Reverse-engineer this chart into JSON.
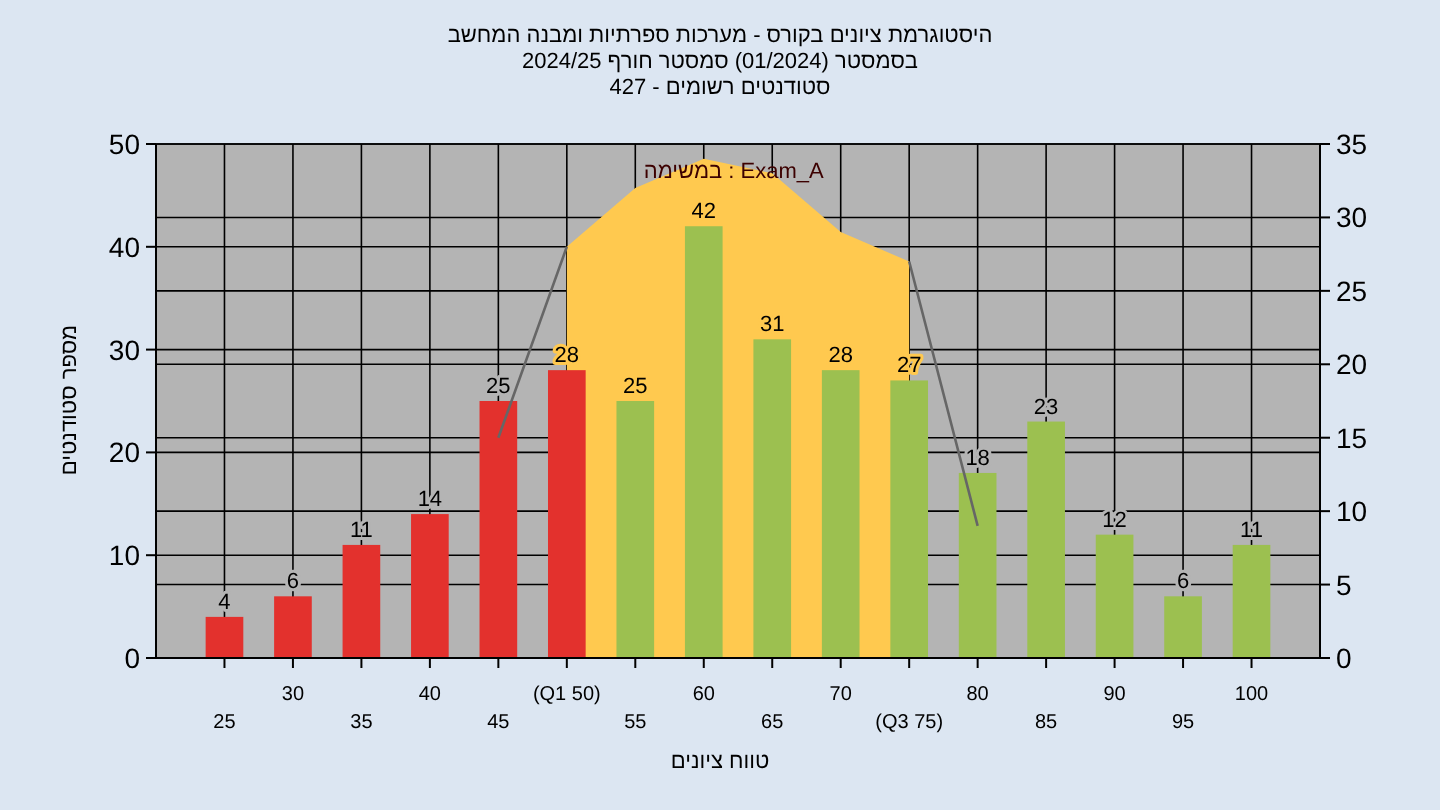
{
  "chart_data": {
    "type": "bar",
    "title": "היסטוגרמת ציונים בקורס - מערכות ספרתיות ומבנה המחשב",
    "subtitle": "בסמסטר  (01/2024)  סמסטר חורף 2024/25",
    "xlabel": "טווח ציונים",
    "ylabel": "מספר סטודנטים",
    "annotations": [
      "סטודנטים רשומים - 427",
      "במשימה : Exam_A"
    ],
    "categories": [
      "25",
      "30",
      "35",
      "40",
      "45",
      "(Q1 50)",
      "55",
      "60",
      "65",
      "70",
      "(Q3 75)",
      "80",
      "85",
      "90",
      "95",
      "100"
    ],
    "ylim": [
      0,
      50
    ],
    "yticks": [
      0,
      10,
      20,
      30,
      40,
      50
    ],
    "y2lim": [
      0,
      35
    ],
    "y2ticks": [
      0,
      5,
      10,
      15,
      20,
      25,
      30,
      35
    ],
    "grid": true,
    "series": [
      {
        "values": [
          4,
          6,
          11,
          14,
          25,
          28,
          25,
          42,
          31,
          28,
          27,
          18,
          23,
          12,
          6,
          11
        ],
        "value_labels": [
          "4",
          "6",
          "11",
          "14",
          "25",
          "28",
          "25",
          "42",
          "31",
          "28",
          "27",
          "18",
          "23",
          "12",
          "6",
          "11"
        ],
        "colors": [
          "#e3312d",
          "#e3312d",
          "#e3312d",
          "#e3312d",
          "#e3312d",
          "#e3312d",
          "#9cc050",
          "#9cc050",
          "#9cc050",
          "#9cc050",
          "#9cc050",
          "#9cc050",
          "#9cc050",
          "#9cc050",
          "#9cc050",
          "#9cc050"
        ]
      },
      {
        "type": "area",
        "axis": "y2",
        "color": "#ffc94f",
        "values": [
          null,
          null,
          null,
          null,
          null,
          28,
          32,
          34,
          33,
          29,
          27,
          null,
          null,
          null,
          null,
          null
        ]
      },
      {
        "type": "line",
        "axis": "y2",
        "color": "#666666",
        "marker": "none",
        "values": [
          null,
          null,
          null,
          null,
          15,
          28,
          null,
          null,
          null,
          null,
          27,
          9,
          null,
          null,
          null,
          null
        ]
      }
    ]
  }
}
